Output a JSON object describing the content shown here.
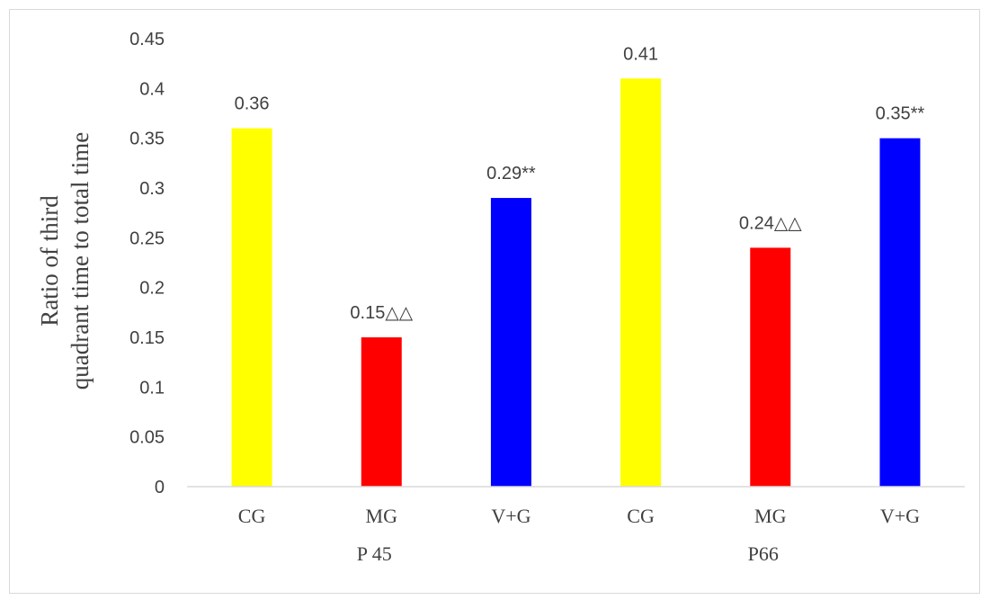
{
  "chart_data": {
    "type": "bar",
    "title": "",
    "ylabel_lines": [
      "Ratio of third",
      "quadrant time to total time"
    ],
    "xlabel": "",
    "ylim": [
      0,
      0.45
    ],
    "y_ticks": [
      "0",
      "0.05",
      "0.1",
      "0.15",
      "0.2",
      "0.25",
      "0.3",
      "0.35",
      "0.4",
      "0.45"
    ],
    "y_tick_values": [
      0,
      0.05,
      0.1,
      0.15,
      0.2,
      0.25,
      0.3,
      0.35,
      0.4,
      0.45
    ],
    "grid": false,
    "groups": [
      {
        "name": "P 45",
        "bars": [
          {
            "category": "CG",
            "value": 0.36,
            "label": "0.36",
            "color": "#ffff00"
          },
          {
            "category": "MG",
            "value": 0.15,
            "label": "0.15△△",
            "color": "#ff0000"
          },
          {
            "category": "V+G",
            "value": 0.29,
            "label": "0.29**",
            "color": "#0000ff"
          }
        ]
      },
      {
        "name": "P66",
        "bars": [
          {
            "category": "CG",
            "value": 0.41,
            "label": "0.41",
            "color": "#ffff00"
          },
          {
            "category": "MG",
            "value": 0.24,
            "label": "0.24△△",
            "color": "#ff0000"
          },
          {
            "category": "V+G",
            "value": 0.35,
            "label": "0.35**",
            "color": "#0000ff"
          }
        ]
      }
    ]
  }
}
